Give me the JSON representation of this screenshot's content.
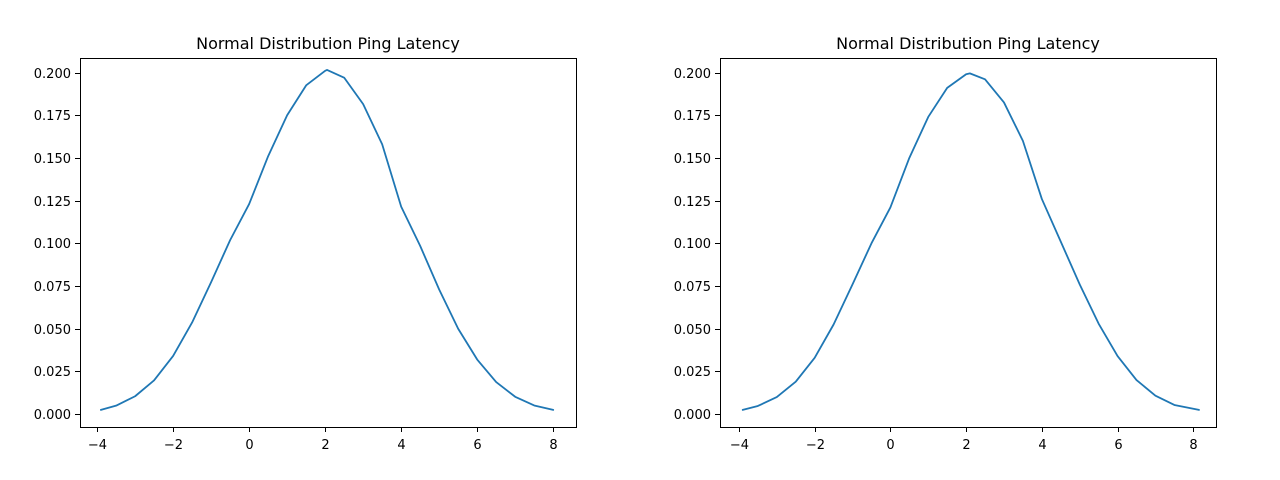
{
  "chart_data": [
    {
      "type": "line",
      "title": "Normal Distribution Ping Latency",
      "xlabel": "",
      "ylabel": "",
      "xlim": [
        -4.45,
        8.6
      ],
      "ylim": [
        -0.0075,
        0.2085
      ],
      "x_ticks": [
        -4,
        -2,
        0,
        2,
        4,
        6,
        8
      ],
      "x_tick_labels": [
        "−4",
        "−2",
        "0",
        "2",
        "4",
        "6",
        "8"
      ],
      "y_ticks": [
        0.0,
        0.025,
        0.05,
        0.075,
        0.1,
        0.125,
        0.15,
        0.175,
        0.2
      ],
      "y_tick_labels": [
        "0.000",
        "0.025",
        "0.050",
        "0.075",
        "0.100",
        "0.125",
        "0.150",
        "0.175",
        "0.200"
      ],
      "grid": false,
      "series": [
        {
          "color": "#1f77b4",
          "x": [
            -3.9,
            -3.5,
            -3.0,
            -2.5,
            -2.0,
            -1.5,
            -1.0,
            -0.5,
            0.0,
            0.5,
            1.0,
            1.5,
            2.0,
            2.05,
            2.5,
            3.0,
            3.5,
            4.0,
            4.5,
            5.0,
            5.5,
            6.0,
            6.5,
            7.0,
            7.5,
            8.0
          ],
          "y": [
            0.0025,
            0.005,
            0.0105,
            0.0198,
            0.0341,
            0.0537,
            0.0773,
            0.1019,
            0.123,
            0.151,
            0.175,
            0.1925,
            0.201,
            0.2015,
            0.197,
            0.1815,
            0.158,
            0.1215,
            0.0985,
            0.073,
            0.05,
            0.032,
            0.0188,
            0.0102,
            0.0051,
            0.0025
          ]
        }
      ]
    },
    {
      "type": "line",
      "title": "Normal Distribution Ping Latency",
      "xlabel": "",
      "ylabel": "",
      "xlim": [
        -4.5,
        8.6
      ],
      "ylim": [
        -0.0075,
        0.2085
      ],
      "x_ticks": [
        -4,
        -2,
        0,
        2,
        4,
        6,
        8
      ],
      "x_tick_labels": [
        "−4",
        "−2",
        "0",
        "2",
        "4",
        "6",
        "8"
      ],
      "y_ticks": [
        0.0,
        0.025,
        0.05,
        0.075,
        0.1,
        0.125,
        0.15,
        0.175,
        0.2
      ],
      "y_tick_labels": [
        "0.000",
        "0.025",
        "0.050",
        "0.075",
        "0.100",
        "0.125",
        "0.150",
        "0.175",
        "0.200"
      ],
      "grid": false,
      "series": [
        {
          "color": "#1f77b4",
          "x": [
            -3.9,
            -3.5,
            -3.0,
            -2.5,
            -2.0,
            -1.5,
            -1.0,
            -0.5,
            0.0,
            0.5,
            1.0,
            1.5,
            2.0,
            2.1,
            2.5,
            3.0,
            3.5,
            4.0,
            4.5,
            5.0,
            5.5,
            6.0,
            6.5,
            7.0,
            7.5,
            8.15
          ],
          "y": [
            0.0025,
            0.0048,
            0.01,
            0.019,
            0.033,
            0.0525,
            0.076,
            0.1,
            0.121,
            0.15,
            0.174,
            0.191,
            0.199,
            0.1995,
            0.196,
            0.1825,
            0.16,
            0.126,
            0.101,
            0.076,
            0.053,
            0.034,
            0.02,
            0.0108,
            0.0054,
            0.0025
          ]
        }
      ]
    }
  ]
}
